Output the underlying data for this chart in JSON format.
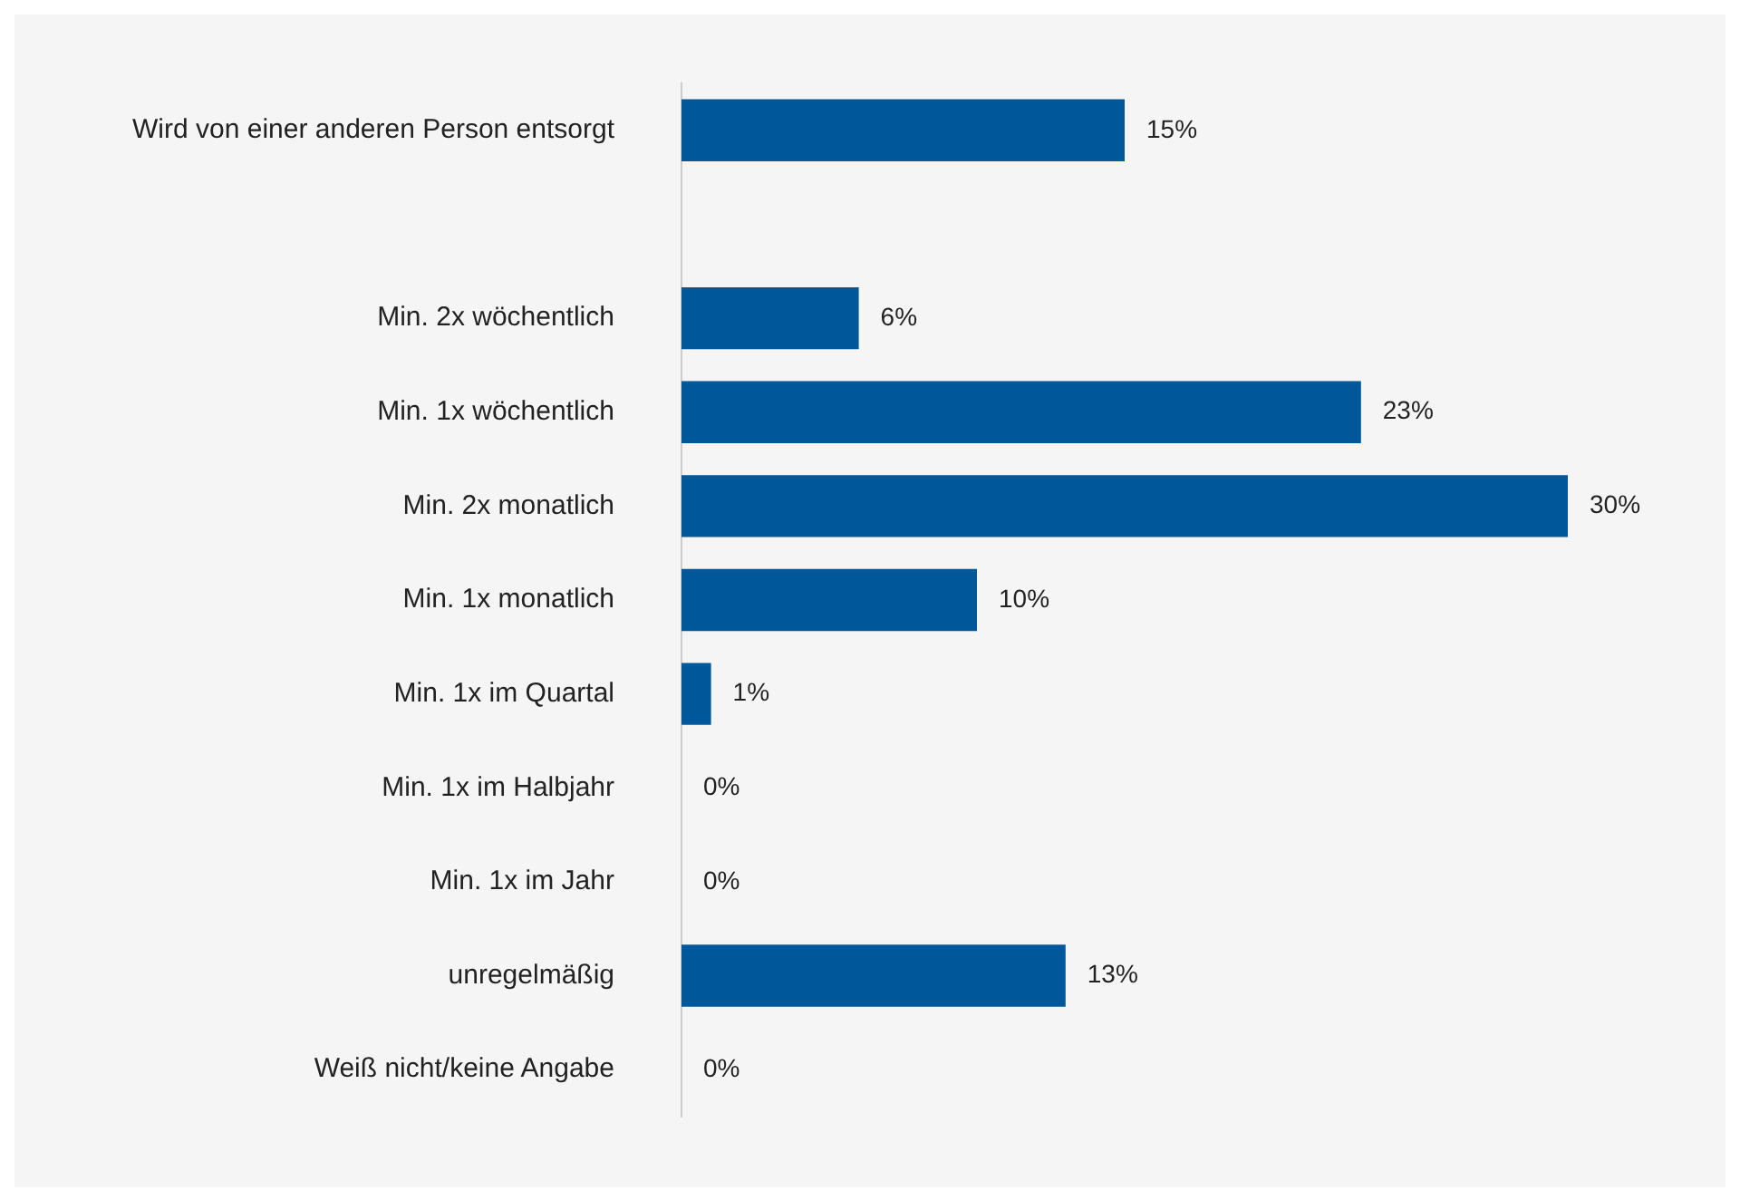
{
  "chart_data": {
    "type": "bar",
    "orientation": "horizontal",
    "categories": [
      "Wird von einer anderen Person entsorgt",
      null,
      "Min. 2x wöchentlich",
      "Min. 1x wöchentlich",
      "Min. 2x monatlich",
      "Min. 1x monatlich",
      "Min. 1x im Quartal",
      "Min. 1x im Halbjahr",
      "Min. 1x im Jahr",
      "unregelmäßig",
      "Weiß nicht/keine Angabe"
    ],
    "values": [
      15,
      null,
      6,
      23,
      30,
      10,
      1,
      0,
      0,
      13,
      0
    ],
    "value_labels": [
      "15%",
      null,
      "6%",
      "23%",
      "30%",
      "10%",
      "1%",
      "0%",
      "0%",
      "13%",
      "0%"
    ],
    "color": "#00579a",
    "legend": false,
    "tick_labels": "y"
  }
}
